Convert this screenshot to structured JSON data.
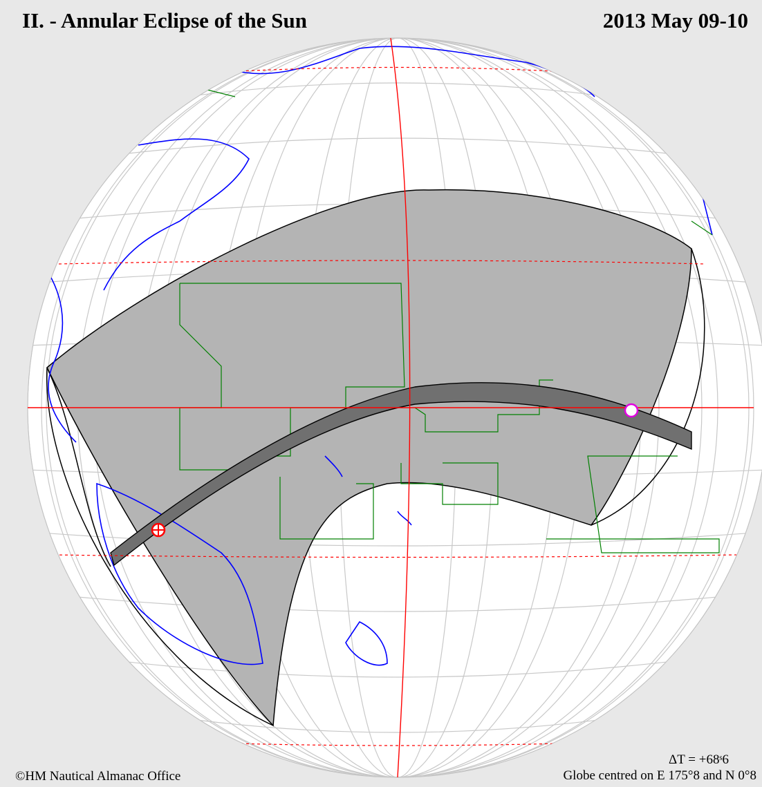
{
  "header": {
    "title": "II. - Annular Eclipse of the Sun",
    "date": "2013 May 09-10"
  },
  "footer": {
    "copyright": "©HM Nautical Almanac Office",
    "delta_t": "ΔT = +68ˢ6",
    "globe_centre": "Globe centred on E 175°8  and N 0°8"
  },
  "map": {
    "projection": "orthographic globe",
    "centre_longitude_deg": 175.8,
    "centre_latitude_deg": 0.8,
    "colors": {
      "background": "#e8e8e8",
      "globe": "#ffffff",
      "graticule": "#c8c8c8",
      "penumbra_region": "#b4b4b4",
      "annular_path": "#707070",
      "coastlines": "#0000ff",
      "boundaries": "#008000",
      "reference_lines": "#ff0000",
      "start_marker": "#ff0000",
      "end_marker": "#e000e0"
    },
    "markers": [
      {
        "name": "path-start",
        "symbol": "circle-cross"
      },
      {
        "name": "path-end",
        "symbol": "circle"
      }
    ]
  }
}
